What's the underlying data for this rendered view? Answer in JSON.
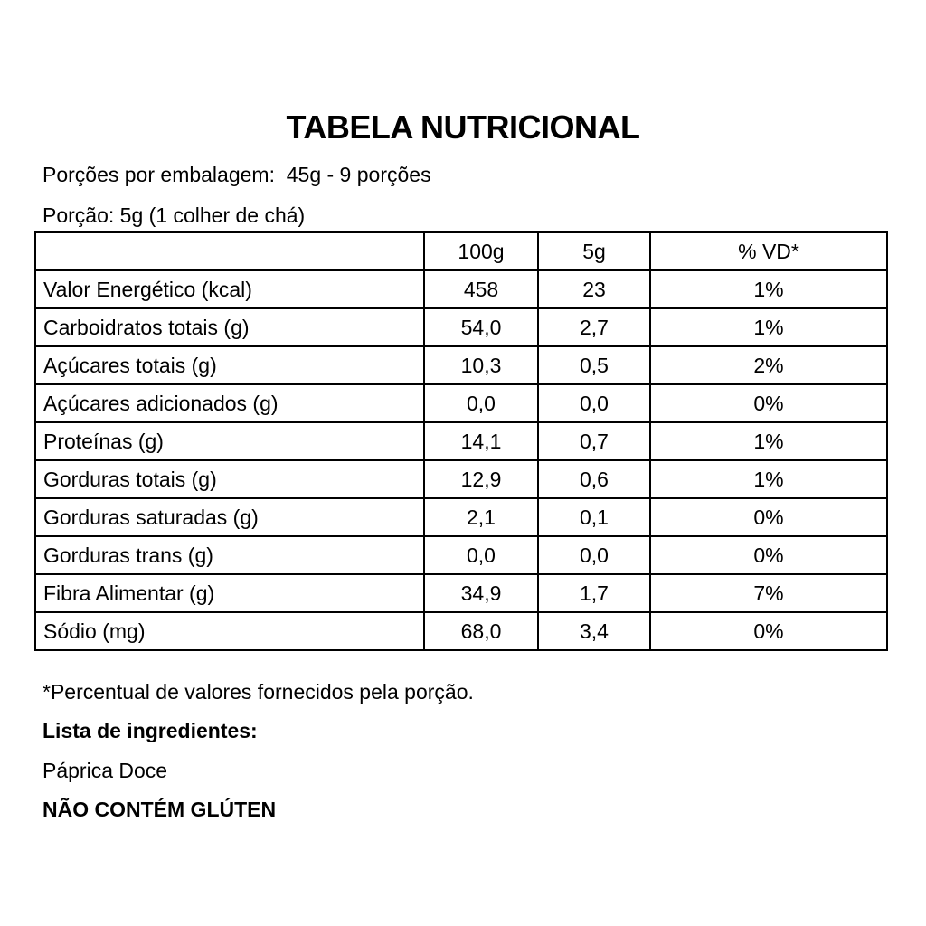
{
  "title": "TABELA NUTRICIONAL",
  "servings_per_package": "Porções por embalagem:  45g - 9 porções",
  "serving": "Porção: 5g (1 colher de chá)",
  "table": {
    "headers": [
      "",
      "100g",
      "5g",
      "% VD*"
    ],
    "rows": [
      [
        "Valor Energético (kcal)",
        "458",
        "23",
        "1%"
      ],
      [
        "Carboidratos totais (g)",
        "54,0",
        "2,7",
        "1%"
      ],
      [
        "Açúcares totais (g)",
        "10,3",
        "0,5",
        "2%"
      ],
      [
        "Açúcares adicionados (g)",
        "0,0",
        "0,0",
        "0%"
      ],
      [
        "Proteínas (g)",
        "14,1",
        "0,7",
        "1%"
      ],
      [
        "Gorduras totais (g)",
        "12,9",
        "0,6",
        "1%"
      ],
      [
        "Gorduras saturadas (g)",
        "2,1",
        "0,1",
        "0%"
      ],
      [
        "Gorduras trans (g)",
        "0,0",
        "0,0",
        "0%"
      ],
      [
        "Fibra Alimentar (g)",
        "34,9",
        "1,7",
        "7%"
      ],
      [
        "Sódio (mg)",
        "68,0",
        "3,4",
        "0%"
      ]
    ]
  },
  "footnote": "*Percentual de valores fornecidos pela porção.",
  "ingredients_heading": "Lista de ingredientes:",
  "ingredients": "Páprica Doce",
  "gluten_notice": "NÃO CONTÉM GLÚTEN"
}
